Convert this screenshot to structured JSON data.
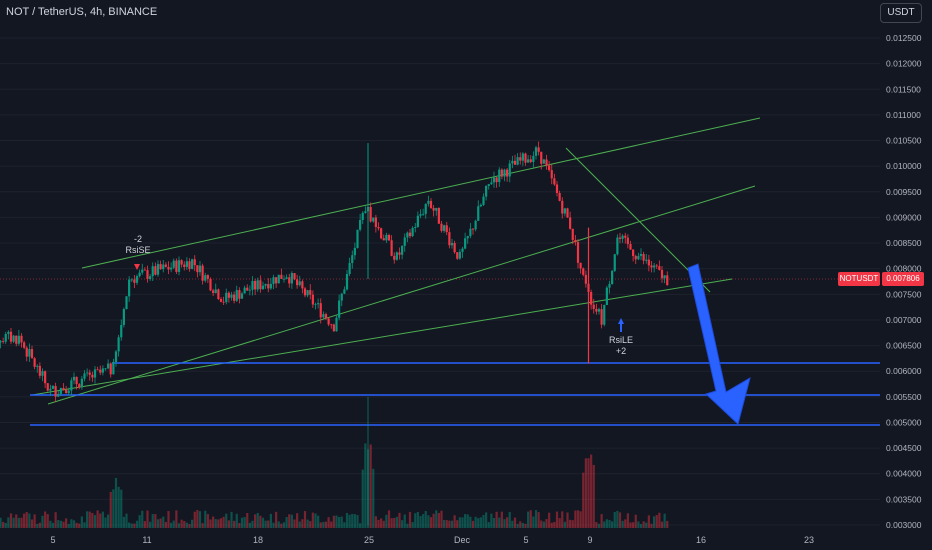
{
  "header": {
    "title": "NOT / TetherUS, 4h, BINANCE",
    "currency": "USDT"
  },
  "price_tag": {
    "symbol": "NOTUSDT",
    "value": "0.007806"
  },
  "signals": {
    "short": {
      "count": "-2",
      "label": "RsiSE"
    },
    "long": {
      "label": "RsiLE",
      "count": "+2"
    }
  },
  "chart_data": {
    "type": "candlestick",
    "x_tick_labels": [
      "5",
      "11",
      "18",
      "25",
      "Dec",
      "5",
      "9",
      "16",
      "23"
    ],
    "y_tick_labels": [
      "0.012500",
      "0.012000",
      "0.011500",
      "0.011000",
      "0.010500",
      "0.010000",
      "0.009500",
      "0.009000",
      "0.008500",
      "0.008000",
      "0.007500",
      "0.007000",
      "0.006500",
      "0.006000",
      "0.005500",
      "0.005000",
      "0.004500",
      "0.004000",
      "0.003500",
      "0.003000"
    ],
    "ylim": [
      0.0029,
      0.013
    ],
    "last_price": 0.007806,
    "colors": {
      "up": "#089981",
      "down": "#f23645",
      "trend": "#4caf50",
      "level": "#2962ff",
      "arrow": "#2962ff",
      "background": "#131722",
      "text": "#b2b5be"
    },
    "support_levels": [
      0.00615,
      0.00555,
      0.00495
    ],
    "key_points": [
      {
        "date": "Nov 3",
        "price": 0.00665
      },
      {
        "date": "Nov 5",
        "price": 0.0056
      },
      {
        "date": "Nov 9",
        "price": 0.00605
      },
      {
        "date": "Nov 10",
        "price": 0.0078
      },
      {
        "date": "Nov 14",
        "price": 0.00815
      },
      {
        "date": "Nov 16",
        "price": 0.0074
      },
      {
        "date": "Nov 20",
        "price": 0.0079
      },
      {
        "date": "Nov 23",
        "price": 0.0069
      },
      {
        "date": "Nov 25",
        "price": 0.0092
      },
      {
        "date": "Nov 27",
        "price": 0.0082
      },
      {
        "date": "Nov 29",
        "price": 0.00935
      },
      {
        "date": "Dec 1",
        "price": 0.0082
      },
      {
        "date": "Dec 3",
        "price": 0.00975
      },
      {
        "date": "Dec 6",
        "price": 0.0103
      },
      {
        "date": "Dec 8",
        "price": 0.00885
      },
      {
        "date": "Dec 9",
        "price": 0.0076
      },
      {
        "date": "Dec 10",
        "price": 0.007
      },
      {
        "date": "Dec 11",
        "price": 0.0086
      },
      {
        "date": "Dec 14",
        "price": 0.00781
      }
    ],
    "volume_spikes": [
      {
        "date": "Nov 25",
        "level": 1.0
      },
      {
        "date": "Dec 9",
        "level": 0.8
      },
      {
        "date": "Nov 9",
        "level": 0.45
      }
    ]
  }
}
